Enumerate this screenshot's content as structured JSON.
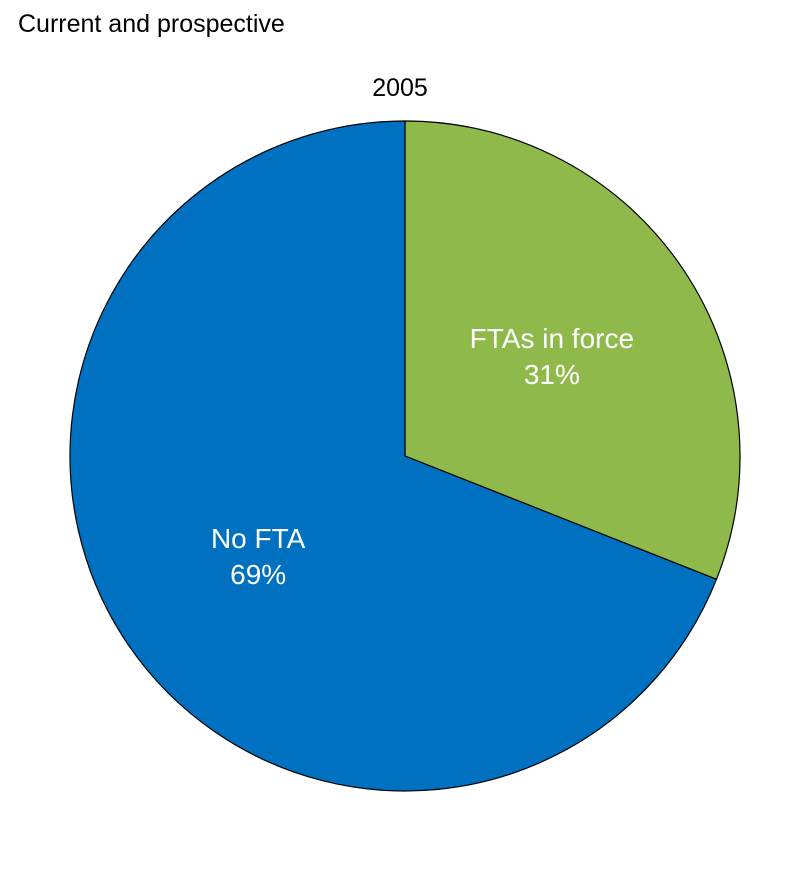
{
  "chart_data": {
    "type": "pie",
    "subtitle": "Current and prospective",
    "title": "2005",
    "slices": [
      {
        "name": "FTAs in force",
        "value": 31,
        "label": "31%",
        "color": "#8fba4b"
      },
      {
        "name": "No FTA",
        "value": 69,
        "label": "69%",
        "color": "#0070c0"
      }
    ],
    "start_angle": "12 o'clock",
    "direction": "clockwise",
    "legend": "none",
    "labels_inside": true
  }
}
